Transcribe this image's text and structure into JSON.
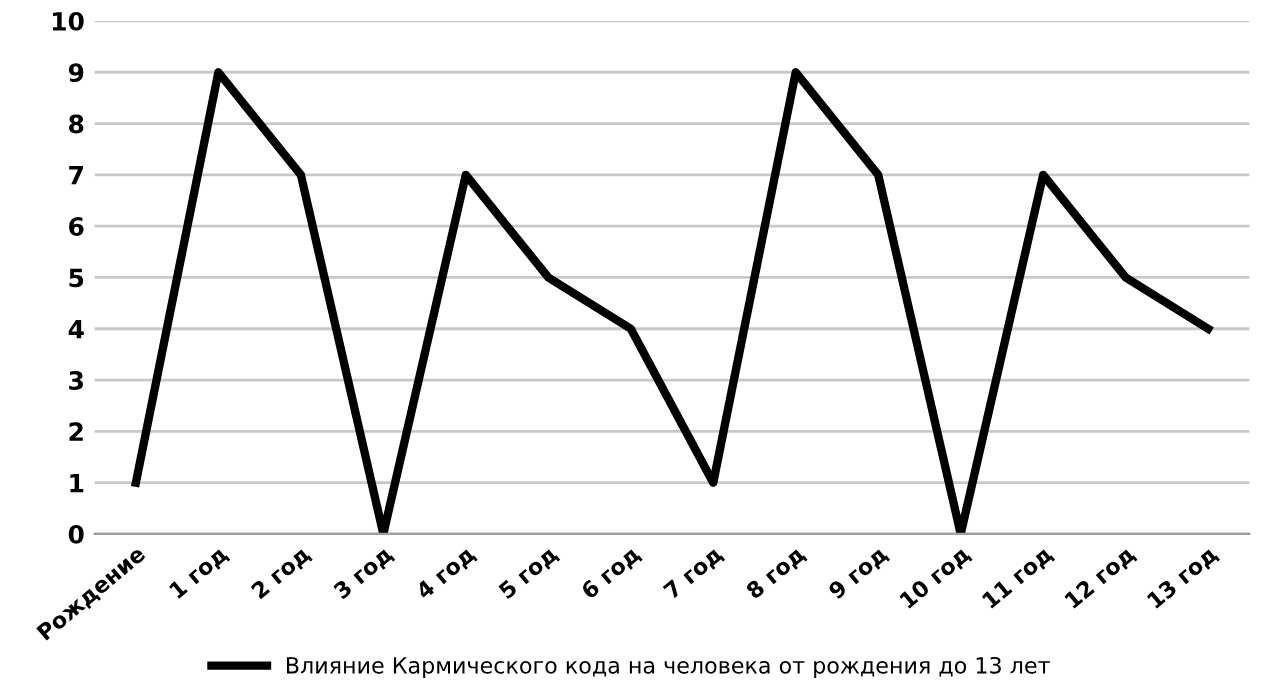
{
  "chart_data": {
    "type": "line",
    "categories": [
      "Рождение",
      "1 год",
      "2 год",
      "3 год",
      "4 год",
      "5 год",
      "6 год",
      "7 год",
      "8 год",
      "9 год",
      "10 год",
      "11 год",
      "12 год",
      "13 год"
    ],
    "series": [
      {
        "name": "Влияние Кармического кода на человека от рождения до 13 лет",
        "color": "#000000",
        "values": [
          1,
          9,
          7,
          0,
          7,
          5,
          4,
          1,
          9,
          7,
          0,
          7,
          5,
          4
        ]
      }
    ],
    "ylim": [
      0,
      10
    ],
    "yticks": [
      0,
      1,
      2,
      3,
      4,
      5,
      6,
      7,
      8,
      9,
      10
    ],
    "grid": "y",
    "legend": "bottom",
    "marker": "none",
    "line_style": "solid"
  }
}
